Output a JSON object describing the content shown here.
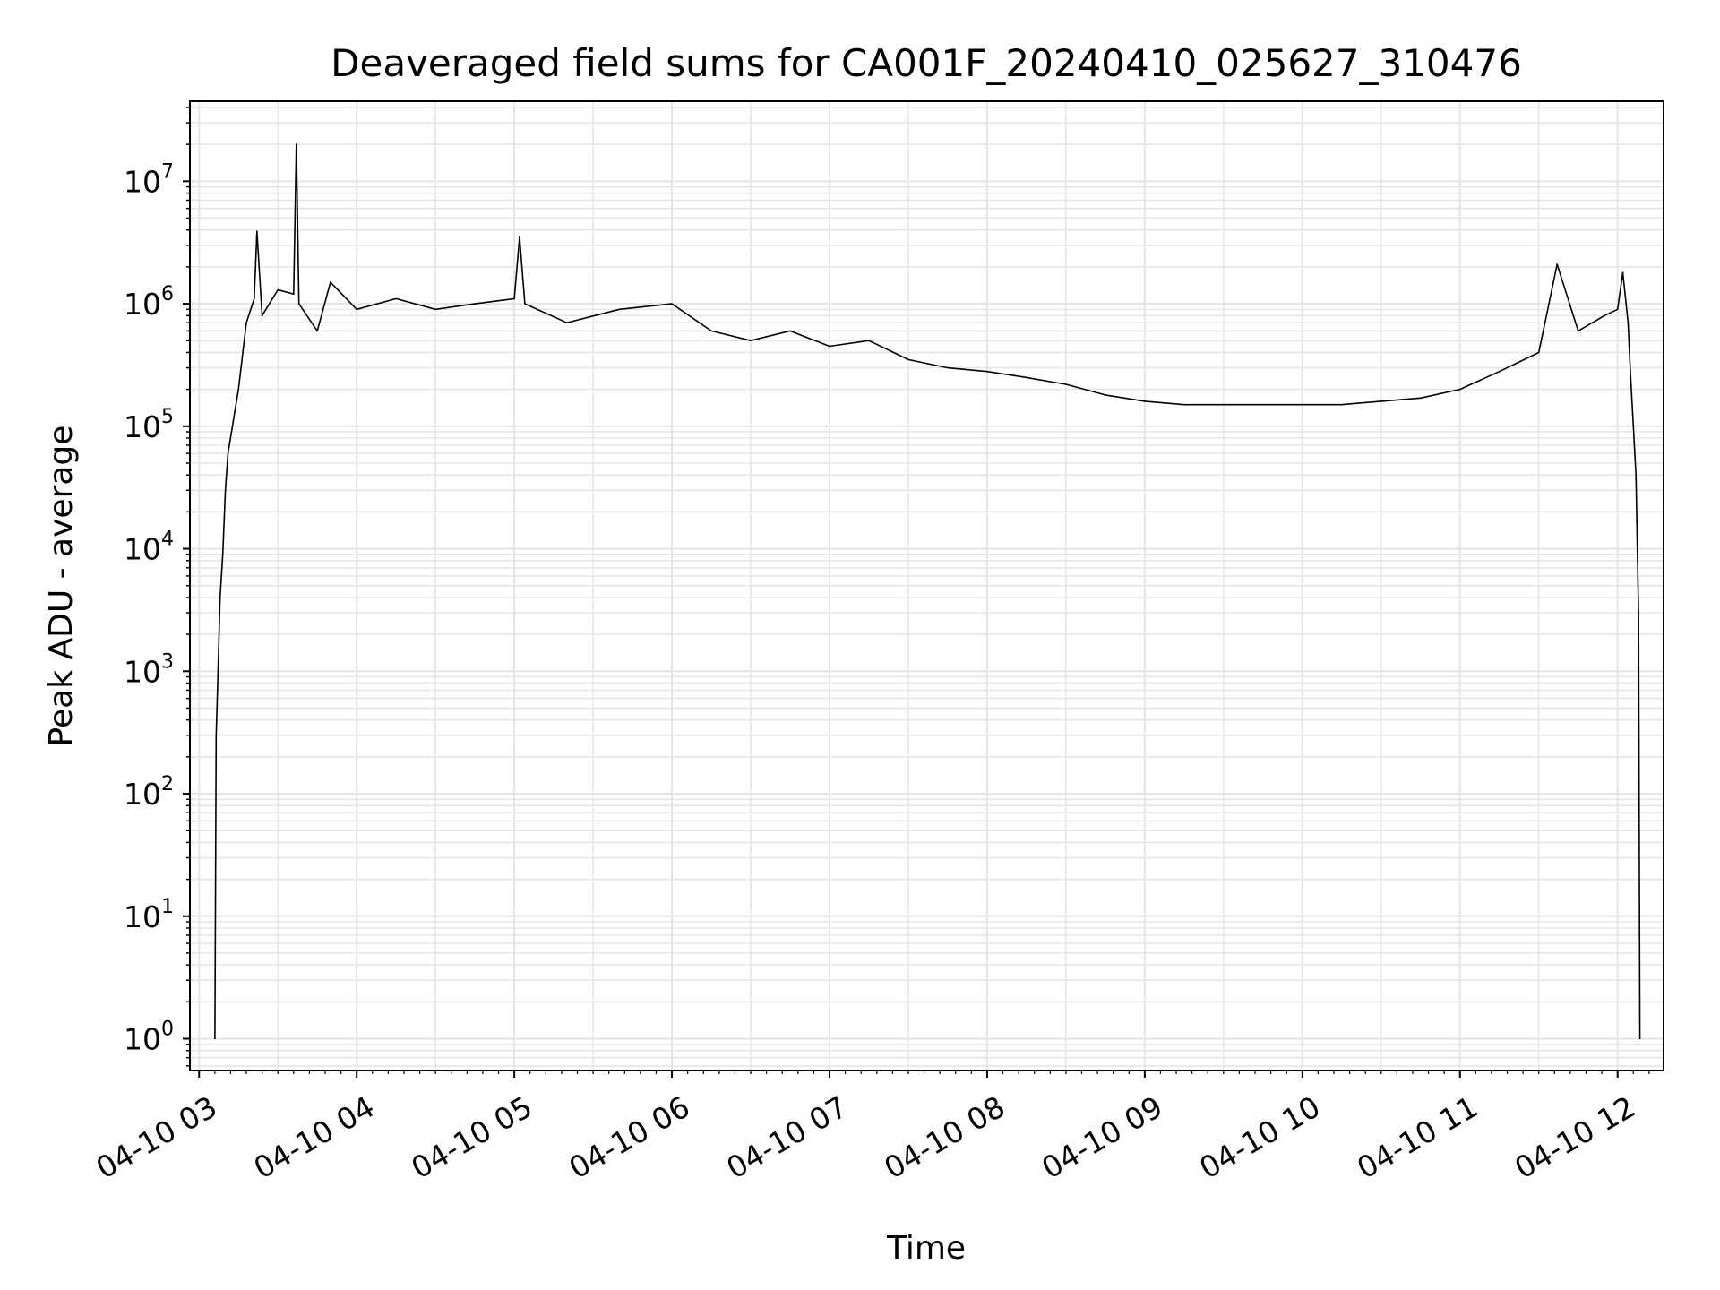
{
  "chart_data": {
    "type": "line",
    "title": "Deaveraged field sums for CA001F_20240410_025627_310476",
    "xlabel": "Time",
    "ylabel": "Peak ADU - average",
    "yscale": "log",
    "ylim": [
      0.55,
      45000000
    ],
    "xlim": [
      "2024-04-10 02:56:30",
      "2024-04-10 12:17:30"
    ],
    "grid": true,
    "line_color": "#000000",
    "grid_color": "#e5e5e5",
    "x_ticks": [
      {
        "x": "2024-04-10 03:00",
        "label": "04-10 03"
      },
      {
        "x": "2024-04-10 04:00",
        "label": "04-10 04"
      },
      {
        "x": "2024-04-10 05:00",
        "label": "04-10 05"
      },
      {
        "x": "2024-04-10 06:00",
        "label": "04-10 06"
      },
      {
        "x": "2024-04-10 07:00",
        "label": "04-10 07"
      },
      {
        "x": "2024-04-10 08:00",
        "label": "04-10 08"
      },
      {
        "x": "2024-04-10 09:00",
        "label": "04-10 09"
      },
      {
        "x": "2024-04-10 10:00",
        "label": "04-10 10"
      },
      {
        "x": "2024-04-10 11:00",
        "label": "04-10 11"
      },
      {
        "x": "2024-04-10 12:00",
        "label": "04-10 12"
      }
    ],
    "y_ticks": [
      {
        "value": 1,
        "base": "10",
        "exp": "0"
      },
      {
        "value": 10,
        "base": "10",
        "exp": "1"
      },
      {
        "value": 100,
        "base": "10",
        "exp": "2"
      },
      {
        "value": 1000,
        "base": "10",
        "exp": "3"
      },
      {
        "value": 10000,
        "base": "10",
        "exp": "4"
      },
      {
        "value": 100000,
        "base": "10",
        "exp": "5"
      },
      {
        "value": 1000000,
        "base": "10",
        "exp": "6"
      },
      {
        "value": 10000000,
        "base": "10",
        "exp": "7"
      }
    ],
    "series": [
      {
        "points": [
          [
            "2024-04-10 03:06",
            1
          ],
          [
            "2024-04-10 03:06:30",
            300
          ],
          [
            "2024-04-10 03:07",
            700
          ],
          [
            "2024-04-10 03:08",
            4000
          ],
          [
            "2024-04-10 03:09",
            9000
          ],
          [
            "2024-04-10 03:10",
            30000
          ],
          [
            "2024-04-10 03:11",
            60000
          ],
          [
            "2024-04-10 03:13",
            110000
          ],
          [
            "2024-04-10 03:15",
            200000
          ],
          [
            "2024-04-10 03:18",
            700000
          ],
          [
            "2024-04-10 03:21",
            1100000
          ],
          [
            "2024-04-10 03:22",
            3900000
          ],
          [
            "2024-04-10 03:24",
            800000
          ],
          [
            "2024-04-10 03:30",
            1300000
          ],
          [
            "2024-04-10 03:36",
            1200000
          ],
          [
            "2024-04-10 03:37",
            20000000
          ],
          [
            "2024-04-10 03:38",
            1000000
          ],
          [
            "2024-04-10 03:45",
            600000
          ],
          [
            "2024-04-10 03:50",
            1500000
          ],
          [
            "2024-04-10 04:00",
            900000
          ],
          [
            "2024-04-10 04:15",
            1100000
          ],
          [
            "2024-04-10 04:30",
            900000
          ],
          [
            "2024-04-10 04:45",
            1000000
          ],
          [
            "2024-04-10 05:00",
            1100000
          ],
          [
            "2024-04-10 05:02",
            3500000
          ],
          [
            "2024-04-10 05:04",
            1000000
          ],
          [
            "2024-04-10 05:20",
            700000
          ],
          [
            "2024-04-10 05:40",
            900000
          ],
          [
            "2024-04-10 06:00",
            1000000
          ],
          [
            "2024-04-10 06:15",
            600000
          ],
          [
            "2024-04-10 06:30",
            500000
          ],
          [
            "2024-04-10 06:45",
            600000
          ],
          [
            "2024-04-10 07:00",
            450000
          ],
          [
            "2024-04-10 07:15",
            500000
          ],
          [
            "2024-04-10 07:30",
            350000
          ],
          [
            "2024-04-10 07:45",
            300000
          ],
          [
            "2024-04-10 08:00",
            280000
          ],
          [
            "2024-04-10 08:15",
            250000
          ],
          [
            "2024-04-10 08:30",
            220000
          ],
          [
            "2024-04-10 08:45",
            180000
          ],
          [
            "2024-04-10 09:00",
            160000
          ],
          [
            "2024-04-10 09:15",
            150000
          ],
          [
            "2024-04-10 09:30",
            150000
          ],
          [
            "2024-04-10 09:45",
            150000
          ],
          [
            "2024-04-10 10:00",
            150000
          ],
          [
            "2024-04-10 10:15",
            150000
          ],
          [
            "2024-04-10 10:30",
            160000
          ],
          [
            "2024-04-10 10:45",
            170000
          ],
          [
            "2024-04-10 11:00",
            200000
          ],
          [
            "2024-04-10 11:15",
            280000
          ],
          [
            "2024-04-10 11:30",
            400000
          ],
          [
            "2024-04-10 11:37",
            2100000
          ],
          [
            "2024-04-10 11:45",
            600000
          ],
          [
            "2024-04-10 11:55",
            800000
          ],
          [
            "2024-04-10 12:00",
            900000
          ],
          [
            "2024-04-10 12:02",
            1800000
          ],
          [
            "2024-04-10 12:04",
            700000
          ],
          [
            "2024-04-10 12:05",
            250000
          ],
          [
            "2024-04-10 12:06",
            100000
          ],
          [
            "2024-04-10 12:07",
            40000
          ],
          [
            "2024-04-10 12:08",
            3000
          ],
          [
            "2024-04-10 12:08:30",
            1
          ]
        ]
      }
    ]
  }
}
